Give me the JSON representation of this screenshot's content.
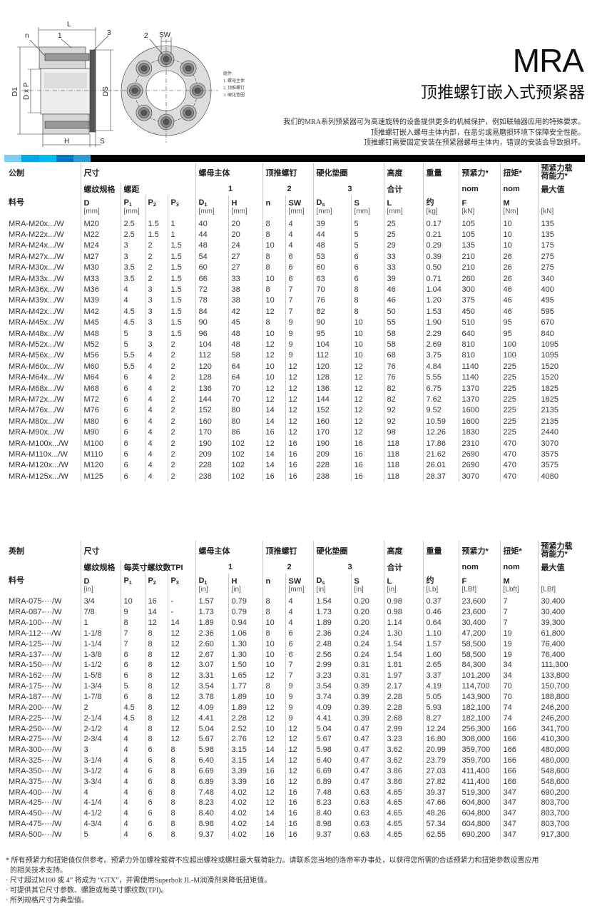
{
  "header": {
    "title": "MRA",
    "subtitle": "顶推螺钉嵌入式预紧器",
    "description": [
      "我们的MRA系列预紧器可为高速旋转的设备提供更多的机械保护，例如联轴器应用的特殊要求。",
      "顶推螺钉嵌入螺母主体内部，在恶劣或易磨损环境下保障安全性能。",
      "顶推螺钉需要固定安装在预紧器螺母主体内，错误的安装会导致损坏。"
    ]
  },
  "diagram": {
    "labels": {
      "L": "L",
      "n": "n",
      "one": "1",
      "three": "3",
      "two": "2",
      "SW": "SW",
      "D1": "D1",
      "DxP": "D x P",
      "Ds": "DS",
      "H": "H",
      "S": "S"
    },
    "legend": [
      "组件:",
      "1. 螺母主体",
      "2. 顶推螺钉",
      "3. 硬化垫圈"
    ]
  },
  "colors": {
    "bar": [
      "#7fcdf3",
      "#00a8e6",
      "#00bcef",
      "#0076be",
      "#3399d5",
      "#000000"
    ],
    "divider": "#c8c8c8"
  },
  "metric": {
    "header": {
      "label": "公制",
      "part_label": "料号",
      "size": "尺寸",
      "thread": "螺纹规格",
      "pitch": "螺距",
      "body": "螺母主体",
      "body_no": "1",
      "screw": "顶推螺钉",
      "screw_no": "2",
      "washer": "硬化垫圈",
      "washer_no": "3",
      "height": "高度",
      "height_sub": "合计",
      "weight": "重量",
      "preload": "预紧力*",
      "preload_sub": "nom",
      "torque": "扭矩*",
      "torque_sub": "nom",
      "capacity": "预紧力载荷能力*",
      "capacity_sub": "最大值"
    },
    "symbols": [
      [
        "D",
        ""
      ],
      [
        "P",
        "1"
      ],
      [
        "P",
        "2"
      ],
      [
        "P",
        "3"
      ],
      [
        "D",
        "1"
      ],
      [
        "H",
        ""
      ],
      [
        "n",
        ""
      ],
      [
        "SW",
        ""
      ],
      [
        "D",
        "s"
      ],
      [
        "S",
        ""
      ],
      [
        "L",
        ""
      ],
      [
        "约",
        ""
      ],
      [
        "F",
        ""
      ],
      [
        "M",
        ""
      ],
      [
        "",
        ""
      ]
    ],
    "units": [
      "[mm]",
      "[mm]",
      "",
      "",
      "[mm]",
      "[mm]",
      "",
      "[mm]",
      "[mm]",
      "[mm]",
      "[mm]",
      "[kg]",
      "[kN]",
      "[Nm]",
      "[kN]"
    ],
    "rows": [
      [
        "MRA-M20x.../W",
        "M20",
        "2.5",
        "1.5",
        "1",
        "40",
        "20",
        "8",
        "4",
        "39",
        "5",
        "25",
        "0.17",
        "105",
        "10",
        "135"
      ],
      [
        "MRA-M22x.../W",
        "M22",
        "2.5",
        "1.5",
        "1",
        "44",
        "20",
        "8",
        "4",
        "44",
        "5",
        "25",
        "0.21",
        "105",
        "10",
        "135"
      ],
      [
        "MRA-M24x.../W",
        "M24",
        "3",
        "2",
        "1.5",
        "48",
        "24",
        "10",
        "4",
        "48",
        "5",
        "29",
        "0.29",
        "135",
        "10",
        "175"
      ],
      [
        "MRA-M27x.../W",
        "M27",
        "3",
        "2",
        "1.5",
        "54",
        "27",
        "8",
        "6",
        "53",
        "6",
        "33",
        "0.39",
        "210",
        "26",
        "275"
      ],
      [
        "MRA-M30x.../W",
        "M30",
        "3.5",
        "2",
        "1.5",
        "60",
        "27",
        "8",
        "6",
        "60",
        "6",
        "33",
        "0.50",
        "210",
        "26",
        "275"
      ],
      [
        "MRA-M33x.../W",
        "M33",
        "3.5",
        "2",
        "1.5",
        "66",
        "33",
        "10",
        "6",
        "63",
        "6",
        "39",
        "0.71",
        "260",
        "26",
        "340"
      ],
      [
        "MRA-M36x.../W",
        "M36",
        "4",
        "3",
        "1.5",
        "72",
        "38",
        "8",
        "7",
        "70",
        "8",
        "46",
        "1.04",
        "300",
        "46",
        "400"
      ],
      [
        "MRA-M39x.../W",
        "M39",
        "4",
        "3",
        "1.5",
        "78",
        "38",
        "10",
        "7",
        "76",
        "8",
        "46",
        "1.20",
        "375",
        "46",
        "495"
      ],
      [
        "MRA-M42x.../W",
        "M42",
        "4.5",
        "3",
        "1.5",
        "84",
        "42",
        "12",
        "7",
        "82",
        "8",
        "50",
        "1.53",
        "450",
        "46",
        "595"
      ],
      [
        "MRA-M45x.../W",
        "M45",
        "4.5",
        "3",
        "1.5",
        "90",
        "45",
        "8",
        "9",
        "90",
        "10",
        "55",
        "1.90",
        "510",
        "95",
        "670"
      ],
      [
        "MRA-M48x.../W",
        "M48",
        "5",
        "3",
        "1.5",
        "96",
        "48",
        "10",
        "9",
        "95",
        "10",
        "58",
        "2.29",
        "640",
        "95",
        "840"
      ],
      [
        "MRA-M52x.../W",
        "M52",
        "5",
        "3",
        "2",
        "104",
        "48",
        "12",
        "9",
        "104",
        "10",
        "58",
        "2.69",
        "810",
        "100",
        "1095"
      ],
      [
        "MRA-M56x.../W",
        "M56",
        "5.5",
        "4",
        "2",
        "112",
        "58",
        "12",
        "9",
        "112",
        "10",
        "68",
        "3.75",
        "810",
        "100",
        "1095"
      ],
      [
        "MRA-M60x.../W",
        "M60",
        "5.5",
        "4",
        "2",
        "120",
        "64",
        "10",
        "12",
        "120",
        "12",
        "76",
        "4.84",
        "1140",
        "225",
        "1520"
      ],
      [
        "MRA-M64x.../W",
        "M64",
        "6",
        "4",
        "2",
        "128",
        "64",
        "10",
        "12",
        "128",
        "12",
        "76",
        "5.55",
        "1140",
        "225",
        "1520"
      ],
      [
        "MRA-M68x.../W",
        "M68",
        "6",
        "4",
        "2",
        "136",
        "70",
        "12",
        "12",
        "136",
        "12",
        "82",
        "6.75",
        "1370",
        "225",
        "1825"
      ],
      [
        "MRA-M72x.../W",
        "M72",
        "6",
        "4",
        "2",
        "144",
        "70",
        "12",
        "12",
        "144",
        "12",
        "82",
        "7.62",
        "1370",
        "225",
        "1825"
      ],
      [
        "MRA-M76x.../W",
        "M76",
        "6",
        "4",
        "2",
        "152",
        "80",
        "14",
        "12",
        "152",
        "12",
        "92",
        "9.52",
        "1600",
        "225",
        "2135"
      ],
      [
        "MRA-M80x.../W",
        "M80",
        "6",
        "4",
        "2",
        "160",
        "80",
        "14",
        "12",
        "160",
        "12",
        "92",
        "10.59",
        "1600",
        "225",
        "2135"
      ],
      [
        "MRA-M90x.../W",
        "M90",
        "6",
        "4",
        "2",
        "170",
        "86",
        "16",
        "12",
        "170",
        "12",
        "98",
        "12.26",
        "1830",
        "225",
        "2440"
      ],
      [
        "MRA-M100x.../W",
        "M100",
        "6",
        "4",
        "2",
        "190",
        "102",
        "12",
        "16",
        "190",
        "16",
        "118",
        "17.86",
        "2310",
        "470",
        "3070"
      ],
      [
        "MRA-M110x.../W",
        "M110",
        "6",
        "4",
        "2",
        "209",
        "102",
        "14",
        "16",
        "209",
        "16",
        "118",
        "21.62",
        "2690",
        "470",
        "3575"
      ],
      [
        "MRA-M120x.../W",
        "M120",
        "6",
        "4",
        "2",
        "228",
        "102",
        "14",
        "16",
        "228",
        "16",
        "118",
        "26.01",
        "2690",
        "470",
        "3575"
      ],
      [
        "MRA-M125x.../W",
        "M125",
        "6",
        "4",
        "2",
        "238",
        "102",
        "16",
        "16",
        "238",
        "16",
        "118",
        "28.37",
        "3070",
        "470",
        "4080"
      ]
    ]
  },
  "imperial": {
    "header": {
      "label": "英制",
      "part_label": "料号",
      "size": "尺寸",
      "thread": "螺纹规格",
      "pitch": "每英寸螺纹数TPI",
      "body": "螺母主体",
      "body_no": "1",
      "screw": "顶推螺钉",
      "screw_no": "2",
      "washer": "硬化垫圈",
      "washer_no": "3",
      "height": "高度",
      "height_sub": "合计",
      "weight": "重量",
      "preload": "预紧力*",
      "preload_sub": "nom",
      "torque": "扭矩*",
      "torque_sub": "nom",
      "capacity": "预紧力载荷能力*",
      "capacity_sub": "最大值"
    },
    "symbols": [
      [
        "D",
        ""
      ],
      [
        "P",
        "1"
      ],
      [
        "P",
        "2"
      ],
      [
        "P",
        "3"
      ],
      [
        "D",
        "1"
      ],
      [
        "H",
        ""
      ],
      [
        "n",
        ""
      ],
      [
        "SW",
        ""
      ],
      [
        "D",
        "s"
      ],
      [
        "S",
        ""
      ],
      [
        "L",
        ""
      ],
      [
        "约",
        ""
      ],
      [
        "F",
        ""
      ],
      [
        "M",
        ""
      ],
      [
        "",
        ""
      ]
    ],
    "units": [
      "[in]",
      "",
      "",
      "",
      "[in]",
      "[in]",
      "",
      "[mm]",
      "[in]",
      "[in]",
      "[in]",
      "[Lb]",
      "[LBf]",
      "[Lbft]",
      "[LBf]"
    ],
    "rows": [
      [
        "MRA-075-···/W",
        "3/4",
        "10",
        "16",
        "-",
        "1.57",
        "0.79",
        "8",
        "4",
        "1.54",
        "0.20",
        "0.98",
        "0.37",
        "23,600",
        "7",
        "30,400"
      ],
      [
        "MRA-087-···/W",
        "7/8",
        "9",
        "14",
        "-",
        "1.73",
        "0.79",
        "8",
        "4",
        "1.73",
        "0.20",
        "0.98",
        "0.46",
        "23,600",
        "7",
        "30,400"
      ],
      [
        "MRA-100-···/W",
        "1",
        "8",
        "12",
        "14",
        "1.89",
        "0.94",
        "10",
        "4",
        "1.89",
        "0.20",
        "1.14",
        "0.64",
        "30,400",
        "7",
        "39,300"
      ],
      [
        "MRA-112-···/W",
        "1-1/8",
        "7",
        "8",
        "12",
        "2.36",
        "1.06",
        "8",
        "6",
        "2.36",
        "0.24",
        "1.30",
        "1.10",
        "47,200",
        "19",
        "61,800"
      ],
      [
        "MRA-125-···/W",
        "1-1/4",
        "7",
        "8",
        "12",
        "2.60",
        "1.30",
        "10",
        "6",
        "2.48",
        "0.24",
        "1.54",
        "1.57",
        "58,500",
        "19",
        "76,400"
      ],
      [
        "MRA-137-···/W",
        "1-3/8",
        "6",
        "8",
        "12",
        "2.67",
        "1.30",
        "10",
        "6",
        "2.56",
        "0.24",
        "1.54",
        "1.60",
        "58,500",
        "19",
        "76,400"
      ],
      [
        "MRA-150-···/W",
        "1-1/2",
        "6",
        "8",
        "12",
        "3.07",
        "1.50",
        "10",
        "7",
        "2.99",
        "0.31",
        "1.81",
        "2.65",
        "84,300",
        "34",
        "111,300"
      ],
      [
        "MRA-162-···/W",
        "1-5/8",
        "6",
        "8",
        "12",
        "3.31",
        "1.65",
        "12",
        "7",
        "3.23",
        "0.31",
        "1.97",
        "3.37",
        "101,200",
        "34",
        "133,800"
      ],
      [
        "MRA-175-···/W",
        "1-3/4",
        "5",
        "8",
        "12",
        "3.54",
        "1.77",
        "8",
        "9",
        "3.54",
        "0.39",
        "2.17",
        "4.19",
        "114,700",
        "70",
        "150,700"
      ],
      [
        "MRA-187-···/W",
        "1-7/8",
        "6",
        "8",
        "12",
        "3.78",
        "1.89",
        "10",
        "9",
        "3.74",
        "0.39",
        "2.28",
        "5.05",
        "143,900",
        "70",
        "188,800"
      ],
      [
        "MRA-200-···/W",
        "2",
        "4.5",
        "8",
        "12",
        "4.09",
        "1.89",
        "12",
        "9",
        "4.09",
        "0.39",
        "2.28",
        "5.93",
        "182,100",
        "74",
        "246,200"
      ],
      [
        "MRA-225-···/W",
        "2-1/4",
        "4.5",
        "8",
        "12",
        "4.41",
        "2.28",
        "12",
        "9",
        "4.41",
        "0.39",
        "2.68",
        "8.27",
        "182,100",
        "74",
        "246,200"
      ],
      [
        "MRA-250-···/W",
        "2-1/2",
        "4",
        "8",
        "12",
        "5.04",
        "2.52",
        "10",
        "12",
        "5.04",
        "0.47",
        "2.99",
        "12.24",
        "256,300",
        "166",
        "341,700"
      ],
      [
        "MRA-275-···/W",
        "2-3/4",
        "4",
        "8",
        "12",
        "5.67",
        "2.76",
        "12",
        "12",
        "5.67",
        "0.47",
        "3.23",
        "16.80",
        "308,000",
        "166",
        "410,300"
      ],
      [
        "MRA-300-···/W",
        "3",
        "4",
        "6",
        "8",
        "5.98",
        "3.15",
        "14",
        "12",
        "5.98",
        "0.47",
        "3.62",
        "20.99",
        "359,700",
        "166",
        "480,000"
      ],
      [
        "MRA-325-···/W",
        "3-1/4",
        "4",
        "6",
        "8",
        "6.40",
        "3.15",
        "14",
        "12",
        "6.40",
        "0.47",
        "3.62",
        "23.79",
        "359,700",
        "166",
        "480,000"
      ],
      [
        "MRA-350-···/W",
        "3-1/2",
        "4",
        "6",
        "8",
        "6.69",
        "3.39",
        "16",
        "12",
        "6.69",
        "0.47",
        "3.86",
        "27.03",
        "411,400",
        "166",
        "548,600"
      ],
      [
        "MRA-375-···/W",
        "3-3/4",
        "4",
        "6",
        "8",
        "6.89",
        "3.39",
        "16",
        "12",
        "6.89",
        "0.47",
        "3.86",
        "27.82",
        "411,400",
        "166",
        "548,600"
      ],
      [
        "MRA-400-···/W",
        "4",
        "4",
        "6",
        "8",
        "7.48",
        "4.02",
        "12",
        "16",
        "7.48",
        "0.63",
        "4.65",
        "39.37",
        "519,300",
        "347",
        "690,200"
      ],
      [
        "MRA-425-···/W",
        "4-1/4",
        "4",
        "6",
        "8",
        "8.23",
        "4.02",
        "12",
        "16",
        "8.23",
        "0.63",
        "4.65",
        "47.66",
        "604,800",
        "347",
        "803,700"
      ],
      [
        "MRA-450-···/W",
        "4-1/2",
        "4",
        "6",
        "8",
        "8.40",
        "4.02",
        "14",
        "16",
        "8.40",
        "0.63",
        "4.65",
        "48.26",
        "604,800",
        "347",
        "803,700"
      ],
      [
        "MRA-475-···/W",
        "4-3/4",
        "4",
        "6",
        "8",
        "8.98",
        "4.02",
        "14",
        "16",
        "8.98",
        "0.63",
        "4.65",
        "57.34",
        "604,800",
        "347",
        "803,700"
      ],
      [
        "MRA-500-···/W",
        "5",
        "4",
        "6",
        "8",
        "9.37",
        "4.02",
        "16",
        "16",
        "9.37",
        "0.63",
        "4.65",
        "62.55",
        "690,200",
        "347",
        "917,300"
      ]
    ]
  },
  "notes": [
    "* 所有预紧力和扭矩值仅供参考。预紧力外加螺栓载荷不应超出螺栓或螺柱最大载荷能力。请联系您当地的洛帝牢办事处，以获得您所需的合适预紧力和扭矩参数设置应用",
    "  的相关技术支持。",
    "· 尺寸超过M100 或 4” 将成为 “GTX”，并需使用Superbolt JL-M润滑剂来降低扭矩值。",
    "· 可提供其它尺寸参数、螺距或每英寸螺纹数(TPI)。",
    "· 所列规格尺寸为典型值。"
  ]
}
